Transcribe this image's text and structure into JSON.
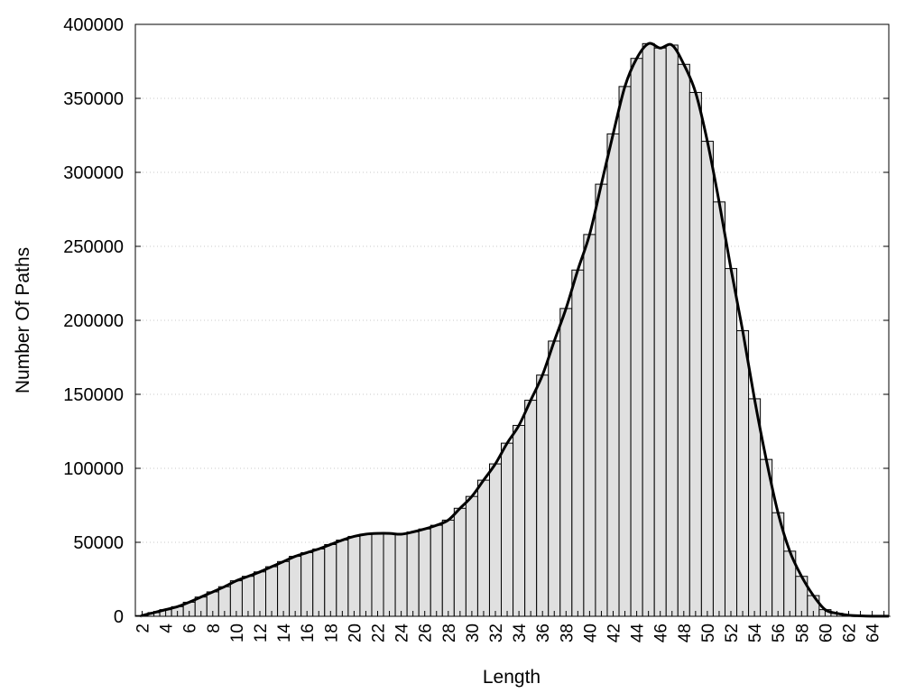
{
  "chart_data": {
    "type": "bar",
    "xlabel": "Length",
    "ylabel": "Number Of Paths",
    "ylim": [
      0,
      400000
    ],
    "yticks": [
      0,
      50000,
      100000,
      150000,
      200000,
      250000,
      300000,
      350000,
      400000
    ],
    "xtick_labels": [
      "2",
      "4",
      "6",
      "8",
      "10",
      "12",
      "14",
      "16",
      "18",
      "20",
      "22",
      "24",
      "26",
      "28",
      "30",
      "32",
      "34",
      "36",
      "38",
      "40",
      "42",
      "44",
      "46",
      "48",
      "50",
      "52",
      "54",
      "56",
      "58",
      "60",
      "62",
      "64"
    ],
    "grid": "horizontal dotted",
    "bar_color": "#e0e0e0",
    "curve_color": "#000000",
    "x": [
      2,
      3,
      4,
      5,
      6,
      7,
      8,
      9,
      10,
      11,
      12,
      13,
      14,
      15,
      16,
      17,
      18,
      19,
      20,
      21,
      22,
      23,
      24,
      25,
      26,
      27,
      28,
      29,
      30,
      31,
      32,
      33,
      34,
      35,
      36,
      37,
      38,
      39,
      40,
      41,
      42,
      43,
      44,
      45,
      46,
      47,
      48,
      49,
      50,
      51,
      52,
      53,
      54,
      55,
      56,
      57,
      58,
      59,
      60,
      61,
      62,
      63,
      64,
      65
    ],
    "values": [
      500,
      2500,
      4500,
      6500,
      9500,
      13000,
      16500,
      20000,
      24000,
      27000,
      30000,
      33500,
      37000,
      40500,
      43000,
      45500,
      48500,
      51500,
      54000,
      55500,
      56000,
      56000,
      55500,
      57000,
      59000,
      61500,
      65000,
      73000,
      81000,
      92000,
      103000,
      117000,
      129000,
      146000,
      163000,
      186000,
      208000,
      234000,
      258000,
      292000,
      326000,
      358000,
      377000,
      387000,
      384000,
      386000,
      373000,
      354000,
      321000,
      280000,
      235000,
      193000,
      147000,
      106000,
      70000,
      44000,
      27000,
      14000,
      4500,
      2000,
      700,
      300,
      100,
      50
    ]
  }
}
